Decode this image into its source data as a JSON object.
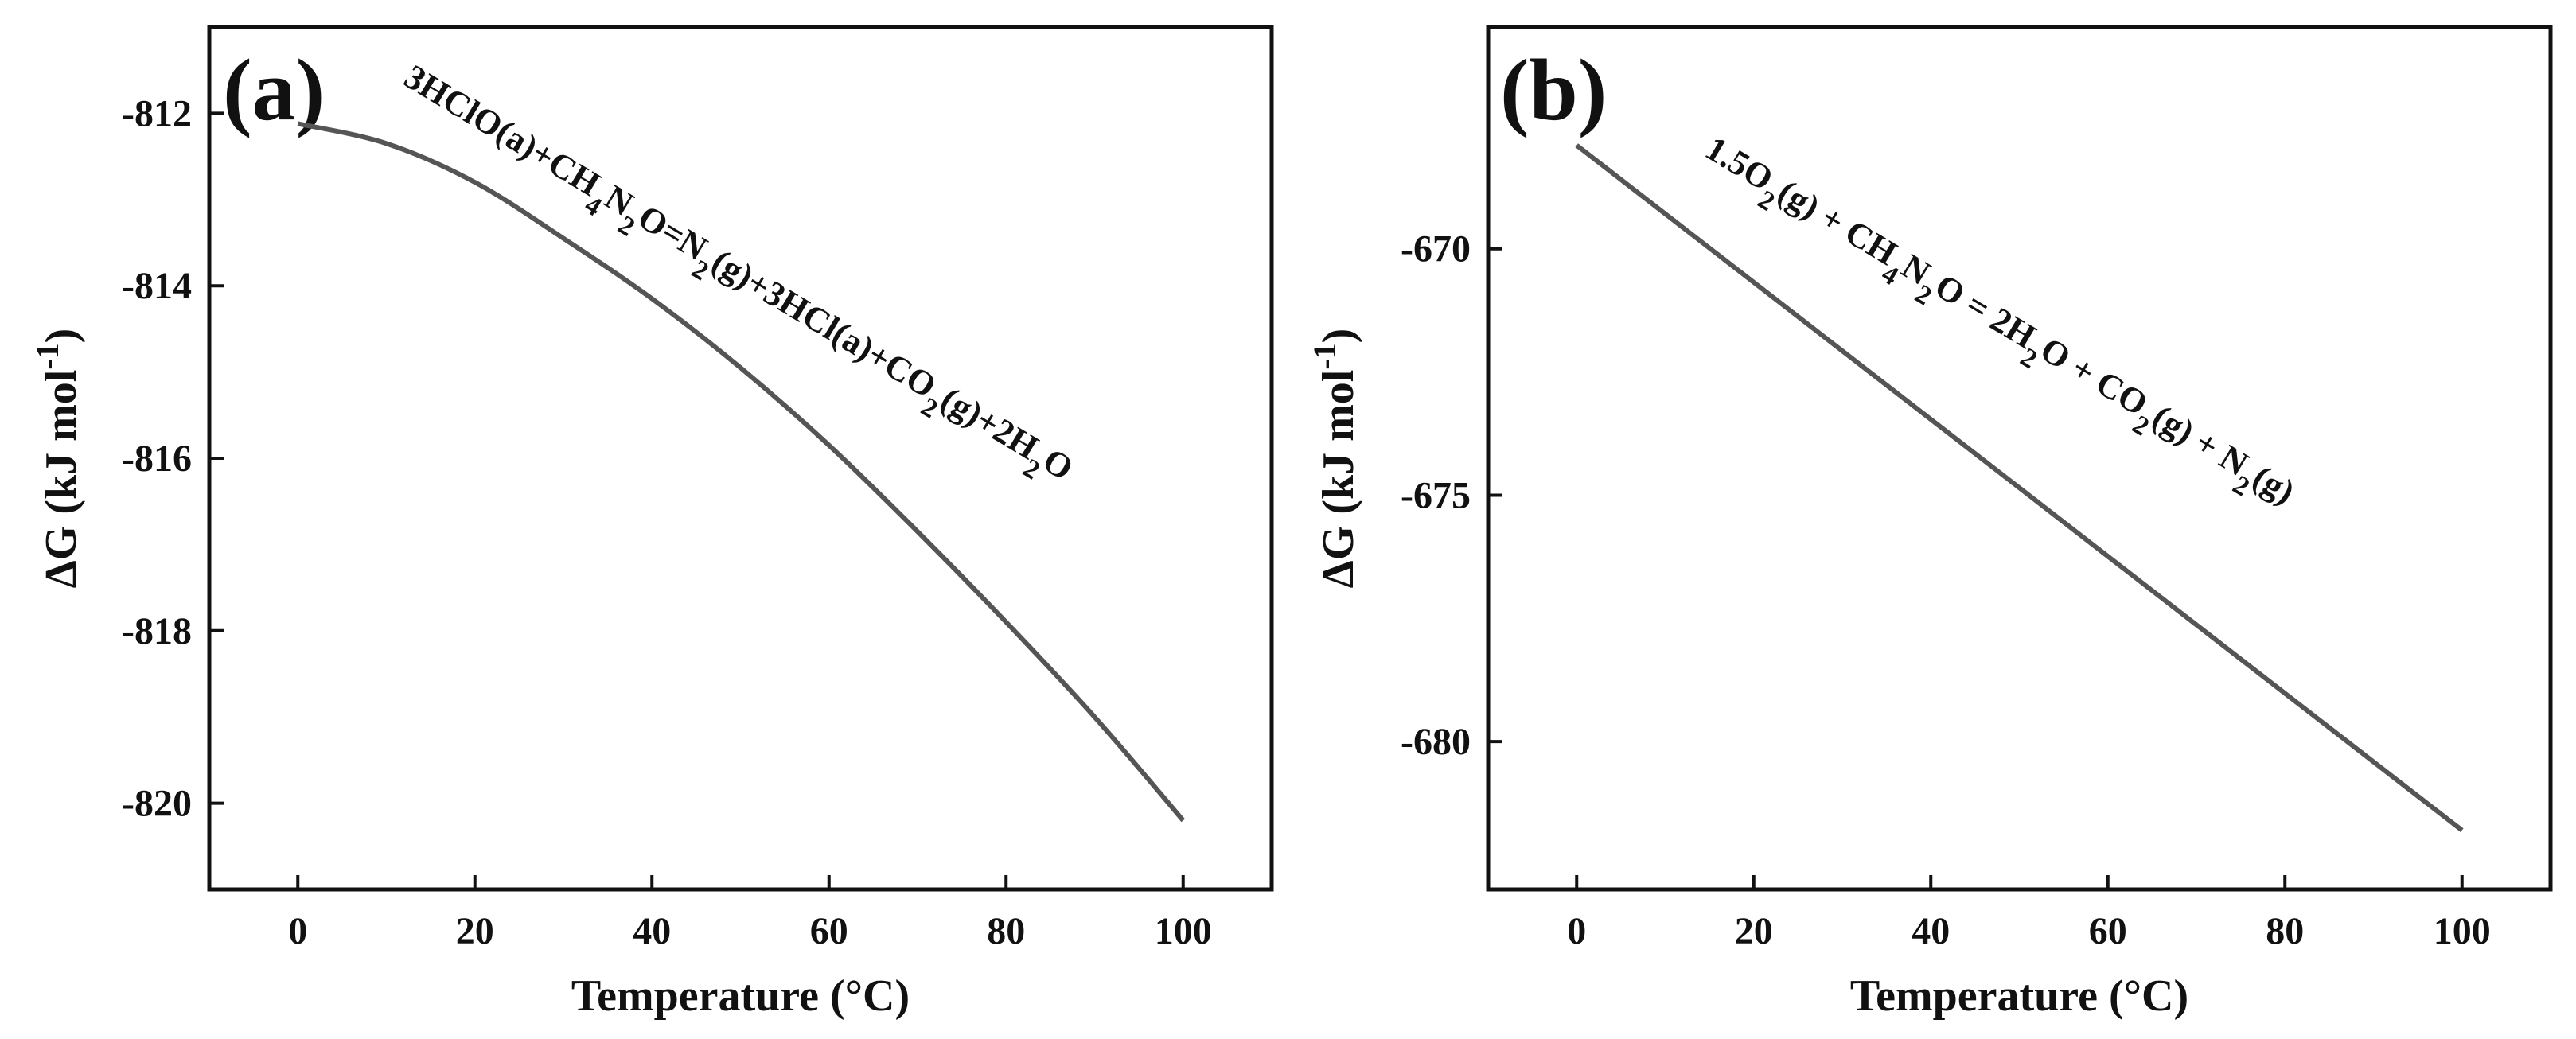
{
  "chart_data": [
    {
      "type": "line",
      "panel_label": "(a)",
      "xlabel": "Temperature (°C)",
      "ylabel": "ΔG (kJ mol⁻¹)",
      "xlim": [
        -10,
        110
      ],
      "ylim": [
        -821,
        -811
      ],
      "xticks": [
        0,
        20,
        40,
        60,
        80,
        100
      ],
      "yticks": [
        -812,
        -814,
        -816,
        -818,
        -820
      ],
      "annotation": "3HClO(a)+CH4N2O=N2(g)+3HCl(a)+CO2(g)+2H2O",
      "series": [
        {
          "x": [
            0,
            10,
            20,
            30,
            40,
            50,
            60,
            70,
            80,
            90,
            100
          ],
          "y": [
            -812.12,
            -812.35,
            -812.8,
            -813.45,
            -814.15,
            -814.95,
            -815.85,
            -816.85,
            -817.9,
            -819.0,
            -820.2
          ]
        }
      ],
      "line_color": "#555555"
    },
    {
      "type": "line",
      "panel_label": "(b)",
      "xlabel": "Temperature (°C)",
      "ylabel": "ΔG (kJ mol⁻¹)",
      "xlim": [
        -10,
        110
      ],
      "ylim": [
        -683.0,
        -665.5
      ],
      "xticks": [
        0,
        20,
        40,
        60,
        80,
        100
      ],
      "yticks": [
        -670,
        -675,
        -680
      ],
      "annotation": "1.5O2(g) + CH4N2O = 2H2O + CO2(g) + N2(g)",
      "series": [
        {
          "x": [
            0,
            100
          ],
          "y": [
            -667.9,
            -681.8
          ]
        }
      ],
      "line_color": "#555555"
    }
  ]
}
